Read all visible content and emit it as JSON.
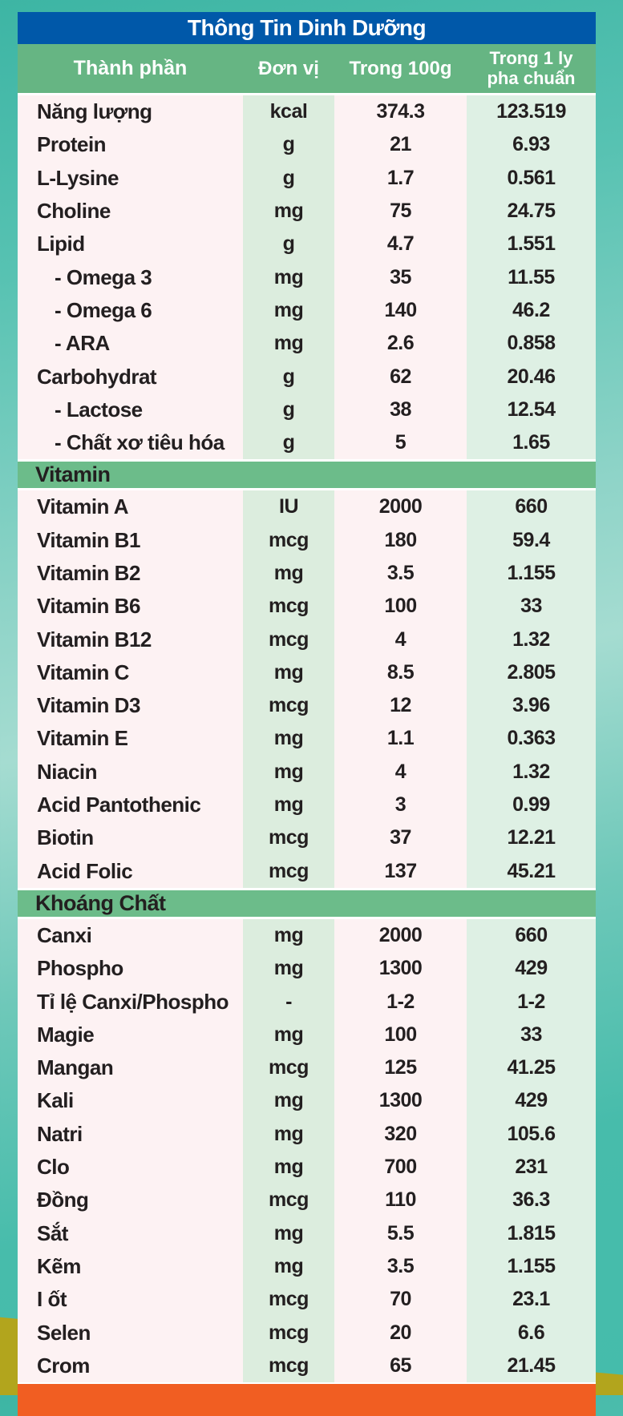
{
  "title": "Thông Tin Dinh Dưỡng",
  "columns": [
    "Thành phần",
    "Đơn vị",
    "Trong 100g",
    "Trong 1 ly\npha chuẩn"
  ],
  "colors": {
    "outer_teal": "#45BCAB",
    "outer_teal_light": "#A5DCD1",
    "title_bg": "#0058A9",
    "title_text": "#FFFFFF",
    "header_bg": "#66B583",
    "header_text": "#FFFFFF",
    "section_bg": "#6CBC8A",
    "row_text": "#231F20",
    "col_pink": "#FDF2F3",
    "col_green_unit": "#DCEDDE",
    "col_green_serving": "#DEF0E4",
    "orange_bar": "#F15E22",
    "yellow_corner": "#B2A51D"
  },
  "sections": [
    {
      "header": null,
      "rows": [
        {
          "name": "Năng lượng",
          "unit": "kcal",
          "per100g": "374.3",
          "perServing": "123.519",
          "indent": false
        },
        {
          "name": "Protein",
          "unit": "g",
          "per100g": "21",
          "perServing": "6.93",
          "indent": false
        },
        {
          "name": "L-Lysine",
          "unit": "g",
          "per100g": "1.7",
          "perServing": "0.561",
          "indent": false
        },
        {
          "name": "Choline",
          "unit": "mg",
          "per100g": "75",
          "perServing": "24.75",
          "indent": false
        },
        {
          "name": "Lipid",
          "unit": "g",
          "per100g": "4.7",
          "perServing": "1.551",
          "indent": false
        },
        {
          "name": "- Omega 3",
          "unit": "mg",
          "per100g": "35",
          "perServing": "11.55",
          "indent": true
        },
        {
          "name": "- Omega 6",
          "unit": "mg",
          "per100g": "140",
          "perServing": "46.2",
          "indent": true
        },
        {
          "name": "- ARA",
          "unit": "mg",
          "per100g": "2.6",
          "perServing": "0.858",
          "indent": true
        },
        {
          "name": "Carbohydrat",
          "unit": "g",
          "per100g": "62",
          "perServing": "20.46",
          "indent": false
        },
        {
          "name": "- Lactose",
          "unit": "g",
          "per100g": "38",
          "perServing": "12.54",
          "indent": true
        },
        {
          "name": "- Chất xơ tiêu hóa",
          "unit": "g",
          "per100g": "5",
          "perServing": "1.65",
          "indent": true
        }
      ]
    },
    {
      "header": "Vitamin",
      "rows": [
        {
          "name": "Vitamin A",
          "unit": "IU",
          "per100g": "2000",
          "perServing": "660",
          "indent": false
        },
        {
          "name": "Vitamin B1",
          "unit": "mcg",
          "per100g": "180",
          "perServing": "59.4",
          "indent": false
        },
        {
          "name": "Vitamin B2",
          "unit": "mg",
          "per100g": "3.5",
          "perServing": "1.155",
          "indent": false
        },
        {
          "name": "Vitamin B6",
          "unit": "mcg",
          "per100g": "100",
          "perServing": "33",
          "indent": false
        },
        {
          "name": "Vitamin B12",
          "unit": "mcg",
          "per100g": "4",
          "perServing": "1.32",
          "indent": false
        },
        {
          "name": "Vitamin C",
          "unit": "mg",
          "per100g": "8.5",
          "perServing": "2.805",
          "indent": false
        },
        {
          "name": "Vitamin D3",
          "unit": "mcg",
          "per100g": "12",
          "perServing": "3.96",
          "indent": false
        },
        {
          "name": "Vitamin E",
          "unit": "mg",
          "per100g": "1.1",
          "perServing": "0.363",
          "indent": false
        },
        {
          "name": "Niacin",
          "unit": "mg",
          "per100g": "4",
          "perServing": "1.32",
          "indent": false
        },
        {
          "name": "Acid Pantothenic",
          "unit": "mg",
          "per100g": "3",
          "perServing": "0.99",
          "indent": false
        },
        {
          "name": "Biotin",
          "unit": "mcg",
          "per100g": "37",
          "perServing": "12.21",
          "indent": false
        },
        {
          "name": "Acid Folic",
          "unit": "mcg",
          "per100g": "137",
          "perServing": "45.21",
          "indent": false
        }
      ]
    },
    {
      "header": "Khoáng Chất",
      "rows": [
        {
          "name": "Canxi",
          "unit": "mg",
          "per100g": "2000",
          "perServing": "660",
          "indent": false
        },
        {
          "name": "Phospho",
          "unit": "mg",
          "per100g": "1300",
          "perServing": "429",
          "indent": false
        },
        {
          "name": "Tỉ lệ Canxi/Phospho",
          "unit": "-",
          "per100g": "1-2",
          "perServing": "1-2",
          "indent": false
        },
        {
          "name": "Magie",
          "unit": "mg",
          "per100g": "100",
          "perServing": "33",
          "indent": false
        },
        {
          "name": "Mangan",
          "unit": "mcg",
          "per100g": "125",
          "perServing": "41.25",
          "indent": false
        },
        {
          "name": "Kali",
          "unit": "mg",
          "per100g": "1300",
          "perServing": "429",
          "indent": false
        },
        {
          "name": "Natri",
          "unit": "mg",
          "per100g": "320",
          "perServing": "105.6",
          "indent": false
        },
        {
          "name": "Clo",
          "unit": "mg",
          "per100g": "700",
          "perServing": "231",
          "indent": false
        },
        {
          "name": "Đồng",
          "unit": "mcg",
          "per100g": "110",
          "perServing": "36.3",
          "indent": false
        },
        {
          "name": "Sắt",
          "unit": "mg",
          "per100g": "5.5",
          "perServing": "1.815",
          "indent": false
        },
        {
          "name": "Kẽm",
          "unit": "mg",
          "per100g": "3.5",
          "perServing": "1.155",
          "indent": false
        },
        {
          "name": "I ốt",
          "unit": "mcg",
          "per100g": "70",
          "perServing": "23.1",
          "indent": false
        },
        {
          "name": "Selen",
          "unit": "mcg",
          "per100g": "20",
          "perServing": "6.6",
          "indent": false
        },
        {
          "name": "Crom",
          "unit": "mcg",
          "per100g": "65",
          "perServing": "21.45",
          "indent": false
        }
      ]
    }
  ]
}
